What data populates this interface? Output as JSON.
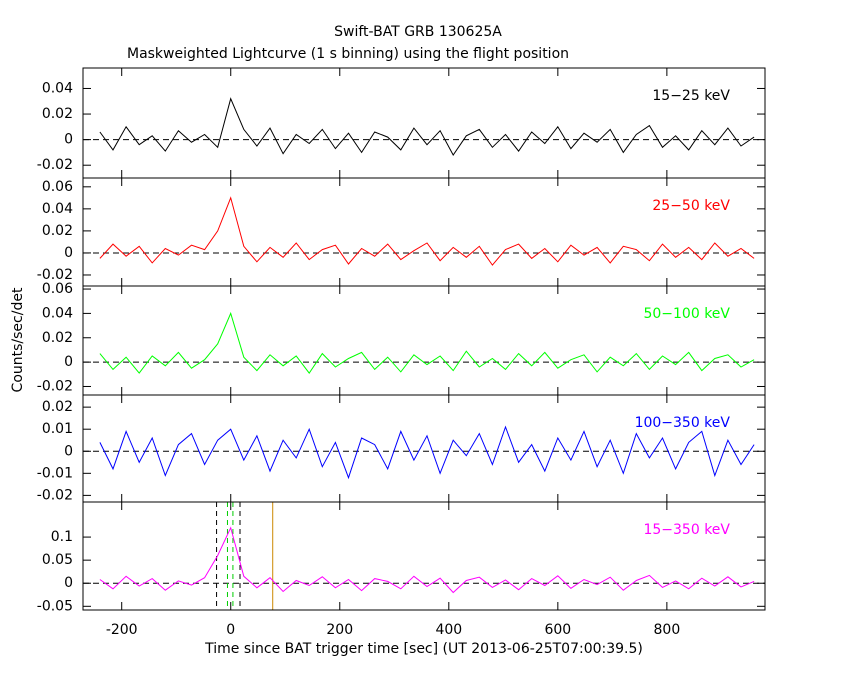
{
  "chart_data": [
    {
      "type": "line",
      "title": "Swift-BAT GRB 130625A",
      "subtitle": "Maskweighted Lightcurve (1 s binning) using the flight position",
      "xlim": [
        -271,
        980
      ],
      "ylim": [
        -0.03,
        0.056
      ],
      "yticks": [
        -0.02,
        0,
        0.02,
        0.04
      ],
      "series": [
        {
          "name": "15−25 keV",
          "color": "#000000",
          "x": [
            -240,
            -216,
            -192,
            -168,
            -144,
            -120,
            -96,
            -72,
            -48,
            -24,
            0,
            24,
            48,
            72,
            96,
            120,
            144,
            168,
            192,
            216,
            240,
            264,
            288,
            312,
            336,
            360,
            384,
            408,
            432,
            456,
            480,
            504,
            528,
            552,
            576,
            600,
            624,
            648,
            672,
            696,
            720,
            744,
            768,
            792,
            816,
            840,
            864,
            888,
            912,
            936,
            960
          ],
          "values": [
            0.006,
            -0.008,
            0.01,
            -0.004,
            0.003,
            -0.009,
            0.007,
            -0.002,
            0.004,
            -0.006,
            0.032,
            0.008,
            -0.005,
            0.009,
            -0.011,
            0.004,
            -0.003,
            0.008,
            -0.007,
            0.005,
            -0.01,
            0.006,
            0.002,
            -0.008,
            0.009,
            -0.004,
            0.007,
            -0.012,
            0.003,
            0.008,
            -0.006,
            0.004,
            -0.009,
            0.006,
            -0.003,
            0.01,
            -0.007,
            0.005,
            -0.002,
            0.008,
            -0.01,
            0.004,
            0.011,
            -0.006,
            0.003,
            -0.008,
            0.007,
            -0.004,
            0.009,
            -0.005,
            0.002
          ]
        }
      ]
    },
    {
      "type": "line",
      "xlim": [
        -271,
        980
      ],
      "ylim": [
        -0.03,
        0.068
      ],
      "yticks": [
        -0.02,
        0,
        0.02,
        0.04,
        0.06
      ],
      "series": [
        {
          "name": "25−50 keV",
          "color": "#ff0000",
          "x": [
            -240,
            -216,
            -192,
            -168,
            -144,
            -120,
            -96,
            -72,
            -48,
            -24,
            0,
            24,
            48,
            72,
            96,
            120,
            144,
            168,
            192,
            216,
            240,
            264,
            288,
            312,
            336,
            360,
            384,
            408,
            432,
            456,
            480,
            504,
            528,
            552,
            576,
            600,
            624,
            648,
            672,
            696,
            720,
            744,
            768,
            792,
            816,
            840,
            864,
            888,
            912,
            936,
            960
          ],
          "values": [
            -0.005,
            0.008,
            -0.003,
            0.006,
            -0.009,
            0.004,
            -0.002,
            0.007,
            0.003,
            0.02,
            0.05,
            0.006,
            -0.008,
            0.005,
            -0.004,
            0.009,
            -0.006,
            0.003,
            0.007,
            -0.01,
            0.004,
            -0.003,
            0.008,
            -0.006,
            0.002,
            0.009,
            -0.007,
            0.005,
            -0.004,
            0.006,
            -0.011,
            0.003,
            0.008,
            -0.005,
            0.004,
            -0.008,
            0.007,
            -0.002,
            0.005,
            -0.009,
            0.006,
            0.003,
            -0.007,
            0.008,
            -0.004,
            0.005,
            -0.006,
            0.009,
            -0.003,
            0.004,
            -0.005
          ]
        }
      ]
    },
    {
      "type": "line",
      "ylabel": "Counts/sec/det",
      "xlim": [
        -271,
        980
      ],
      "ylim": [
        -0.027,
        0.0625
      ],
      "yticks": [
        -0.02,
        0,
        0.02,
        0.04,
        0.06
      ],
      "series": [
        {
          "name": "50−100 keV",
          "color": "#00ff00",
          "x": [
            -240,
            -216,
            -192,
            -168,
            -144,
            -120,
            -96,
            -72,
            -48,
            -24,
            0,
            24,
            48,
            72,
            96,
            120,
            144,
            168,
            192,
            216,
            240,
            264,
            288,
            312,
            336,
            360,
            384,
            408,
            432,
            456,
            480,
            504,
            528,
            552,
            576,
            600,
            624,
            648,
            672,
            696,
            720,
            744,
            768,
            792,
            816,
            840,
            864,
            888,
            912,
            936,
            960
          ],
          "values": [
            0.007,
            -0.006,
            0.004,
            -0.009,
            0.005,
            -0.003,
            0.008,
            -0.005,
            0.002,
            0.015,
            0.04,
            0.004,
            -0.007,
            0.006,
            -0.003,
            0.005,
            -0.009,
            0.007,
            -0.004,
            0.003,
            0.008,
            -0.006,
            0.004,
            -0.008,
            0.006,
            -0.002,
            0.005,
            -0.007,
            0.009,
            -0.004,
            0.003,
            -0.006,
            0.007,
            -0.003,
            0.008,
            -0.005,
            0.002,
            0.006,
            -0.008,
            0.004,
            -0.003,
            0.007,
            -0.006,
            0.005,
            -0.002,
            0.008,
            -0.007,
            0.003,
            0.006,
            -0.004,
            0.002
          ]
        }
      ]
    },
    {
      "type": "line",
      "xlim": [
        -271,
        980
      ],
      "ylim": [
        -0.023,
        0.0255
      ],
      "yticks": [
        -0.02,
        -0.01,
        0,
        0.01,
        0.02
      ],
      "series": [
        {
          "name": "100−350 keV",
          "color": "#0000ff",
          "x": [
            -240,
            -216,
            -192,
            -168,
            -144,
            -120,
            -96,
            -72,
            -48,
            -24,
            0,
            24,
            48,
            72,
            96,
            120,
            144,
            168,
            192,
            216,
            240,
            264,
            288,
            312,
            336,
            360,
            384,
            408,
            432,
            456,
            480,
            504,
            528,
            552,
            576,
            600,
            624,
            648,
            672,
            696,
            720,
            744,
            768,
            792,
            816,
            840,
            864,
            888,
            912,
            936,
            960
          ],
          "values": [
            0.004,
            -0.008,
            0.009,
            -0.005,
            0.006,
            -0.011,
            0.003,
            0.008,
            -0.006,
            0.005,
            0.01,
            -0.004,
            0.007,
            -0.009,
            0.005,
            -0.003,
            0.01,
            -0.007,
            0.004,
            -0.012,
            0.006,
            0.003,
            -0.008,
            0.009,
            -0.004,
            0.007,
            -0.01,
            0.005,
            -0.002,
            0.008,
            -0.006,
            0.011,
            -0.005,
            0.003,
            -0.009,
            0.006,
            -0.004,
            0.009,
            -0.007,
            0.005,
            -0.01,
            0.008,
            -0.003,
            0.006,
            -0.008,
            0.004,
            0.009,
            -0.011,
            0.005,
            -0.006,
            0.003
          ]
        }
      ]
    },
    {
      "type": "line",
      "xlabel": "Time since BAT trigger time [sec] (UT 2013-06-25T07:00:39.5)",
      "xlim": [
        -271,
        980
      ],
      "ylim": [
        -0.058,
        0.176
      ],
      "yticks": [
        -0.05,
        0,
        0.05,
        0.1
      ],
      "xticks": [
        -200,
        0,
        200,
        400,
        600,
        800
      ],
      "vlines": [
        {
          "x": -26,
          "color": "#000000",
          "dashed": true
        },
        {
          "x": -6,
          "color": "#00cc00",
          "dashed": true
        },
        {
          "x": 4,
          "color": "#00cc00",
          "dashed": true
        },
        {
          "x": 17,
          "color": "#000000",
          "dashed": true
        },
        {
          "x": 77,
          "color": "#cc8800",
          "dashed": false
        }
      ],
      "series": [
        {
          "name": "15−350 keV",
          "color": "#ff00ff",
          "x": [
            -240,
            -216,
            -192,
            -168,
            -144,
            -120,
            -96,
            -72,
            -48,
            -24,
            0,
            24,
            48,
            72,
            96,
            120,
            144,
            168,
            192,
            216,
            240,
            264,
            288,
            312,
            336,
            360,
            384,
            408,
            432,
            456,
            480,
            504,
            528,
            552,
            576,
            600,
            624,
            648,
            672,
            696,
            720,
            744,
            768,
            792,
            816,
            840,
            864,
            888,
            912,
            936,
            960
          ],
          "values": [
            0.008,
            -0.012,
            0.015,
            -0.006,
            0.01,
            -0.015,
            0.005,
            -0.004,
            0.012,
            0.06,
            0.12,
            0.015,
            -0.01,
            0.012,
            -0.018,
            0.006,
            -0.005,
            0.014,
            -0.01,
            0.008,
            -0.016,
            0.01,
            0.004,
            -0.012,
            0.015,
            -0.007,
            0.011,
            -0.02,
            0.006,
            0.013,
            -0.009,
            0.007,
            -0.014,
            0.01,
            -0.005,
            0.016,
            -0.011,
            0.008,
            -0.003,
            0.013,
            -0.015,
            0.006,
            0.017,
            -0.009,
            0.005,
            -0.012,
            0.011,
            -0.006,
            0.014,
            -0.008,
            0.004
          ]
        }
      ]
    }
  ]
}
